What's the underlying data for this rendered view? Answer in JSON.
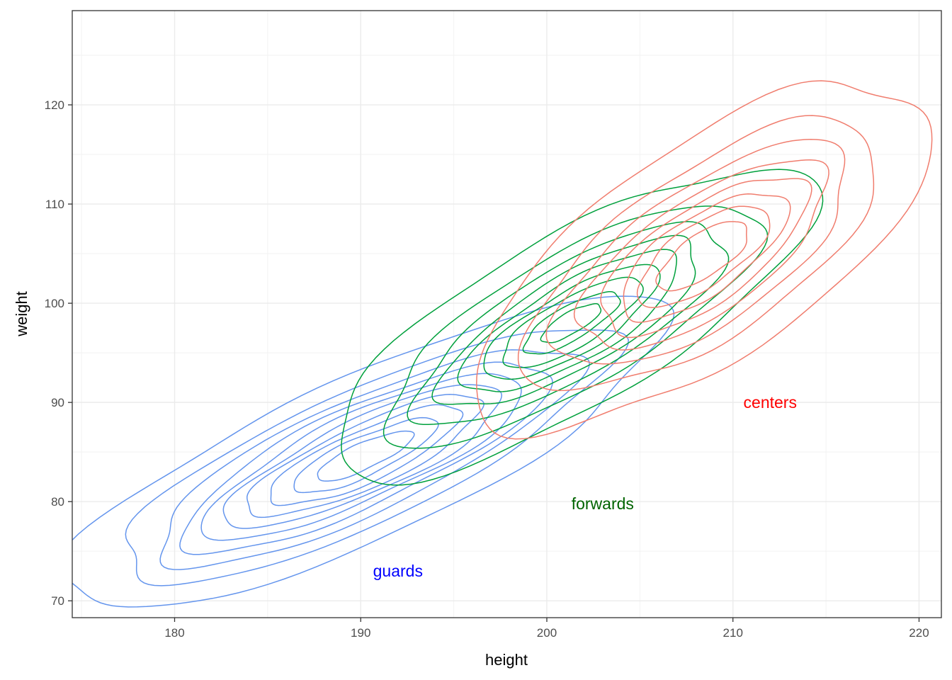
{
  "chart_data": {
    "type": "contour",
    "title": "",
    "xlabel": "height",
    "ylabel": "weight",
    "xlim": [
      174.5,
      221.2
    ],
    "ylim": [
      68.3,
      129.5
    ],
    "x_ticks": [
      180,
      190,
      200,
      210,
      220
    ],
    "y_ticks": [
      70,
      80,
      90,
      100,
      110,
      120
    ],
    "x_tick_labels": [
      "180",
      "190",
      "200",
      "210",
      "220"
    ],
    "y_tick_labels": [
      "70",
      "80",
      "90",
      "100",
      "110",
      "120"
    ],
    "grid": true,
    "legend": "none",
    "series": [
      {
        "name": "guards",
        "color": "#6495ED",
        "label_color": "#0000FF",
        "label_pos": [
          192,
          73
        ],
        "center": [
          190.2,
          84.6
        ],
        "sx": 6.8,
        "sy": 6.6,
        "rho": 0.82,
        "levels": [
          0.06,
          0.15,
          0.25,
          0.35,
          0.45,
          0.55,
          0.65,
          0.75,
          0.85,
          0.93
        ]
      },
      {
        "name": "forwards",
        "color": "#00A03C",
        "label_color": "#006400",
        "label_pos": [
          203,
          79.8
        ],
        "center": [
          201.3,
          98.0
        ],
        "sx": 5.6,
        "sy": 6.8,
        "rho": 0.78,
        "levels": [
          0.07,
          0.2,
          0.33,
          0.46,
          0.58,
          0.7,
          0.8,
          0.9,
          0.96
        ]
      },
      {
        "name": "centers",
        "color": "#F07D6E",
        "label_color": "#FF0000",
        "label_pos": [
          212,
          90
        ],
        "center": [
          208.4,
          104.8
        ],
        "sx": 5.3,
        "sy": 7.6,
        "rho": 0.7,
        "levels": [
          0.07,
          0.2,
          0.33,
          0.46,
          0.58,
          0.7,
          0.8,
          0.9
        ]
      }
    ]
  }
}
